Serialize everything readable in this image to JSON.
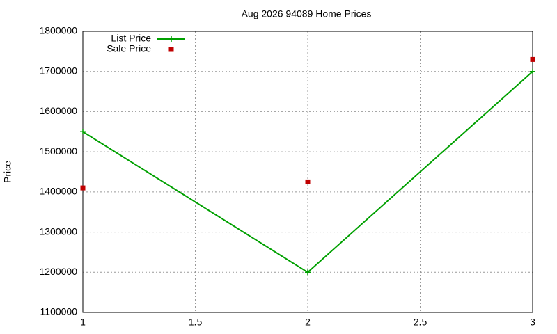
{
  "chart_data": {
    "type": "line",
    "title": "Aug 2026 94089 Home Prices",
    "y_label": "Price",
    "x": [
      1,
      2,
      3
    ],
    "series": [
      {
        "name": "List Price",
        "color": "#00a000",
        "style": "linespoints",
        "values": [
          1550000,
          1200000,
          1700000
        ]
      },
      {
        "name": "Sale Price",
        "color": "#c00000",
        "style": "points",
        "values": [
          1410000,
          1425000,
          1730000
        ]
      }
    ],
    "xlim": [
      1,
      3
    ],
    "xticks": [
      1,
      1.5,
      2,
      2.5,
      3
    ],
    "ylim": [
      1100000,
      1800000
    ],
    "yticks": [
      1100000,
      1200000,
      1300000,
      1400000,
      1500000,
      1600000,
      1700000,
      1800000
    ],
    "grid": true,
    "legend": "top-left"
  }
}
